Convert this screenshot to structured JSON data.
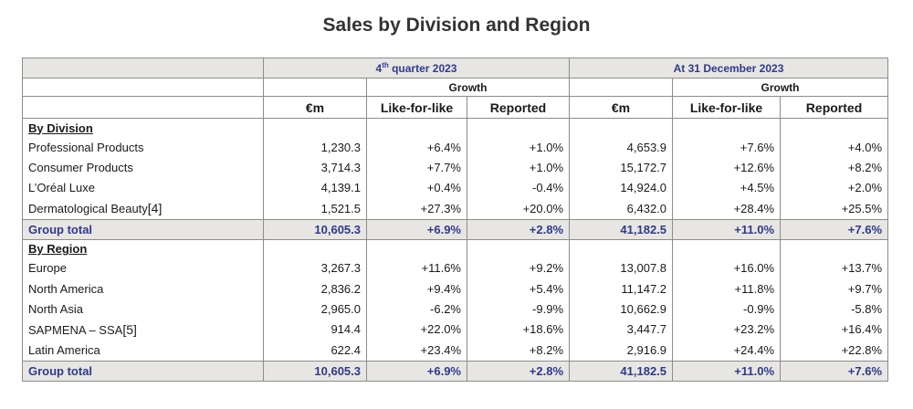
{
  "title": "Sales by Division and Region",
  "header": {
    "period1_prefix": "4",
    "period1_sup": "th",
    "period1_suffix": " quarter 2023",
    "period2": "At 31 December 2023",
    "growth": "Growth",
    "col_eur": "€m",
    "col_lfl": "Like-for-like",
    "col_reported": "Reported"
  },
  "division": {
    "heading": "By Division",
    "rows": [
      {
        "label": "Professional Products",
        "fn": "",
        "q_eur": "1,230.3",
        "q_lfl": "+6.4%",
        "q_rep": "+1.0%",
        "y_eur": "4,653.9",
        "y_lfl": "+7.6%",
        "y_rep": "+4.0%"
      },
      {
        "label": "Consumer Products",
        "fn": "",
        "q_eur": "3,714.3",
        "q_lfl": "+7.7%",
        "q_rep": "+1.0%",
        "y_eur": "15,172.7",
        "y_lfl": "+12.6%",
        "y_rep": "+8.2%"
      },
      {
        "label": "L’Oréal Luxe",
        "fn": "",
        "q_eur": "4,139.1",
        "q_lfl": "+0.4%",
        "q_rep": "-0.4%",
        "y_eur": "14,924.0",
        "y_lfl": "+4.5%",
        "y_rep": "+2.0%"
      },
      {
        "label": "Dermatological Beauty",
        "fn": "[4]",
        "q_eur": "1,521.5",
        "q_lfl": "+27.3%",
        "q_rep": "+20.0%",
        "y_eur": "6,432.0",
        "y_lfl": "+28.4%",
        "y_rep": "+25.5%"
      }
    ],
    "total": {
      "label": "Group total",
      "q_eur": "10,605.3",
      "q_lfl": "+6.9%",
      "q_rep": "+2.8%",
      "y_eur": "41,182.5",
      "y_lfl": "+11.0%",
      "y_rep": "+7.6%"
    }
  },
  "region": {
    "heading": "By Region",
    "rows": [
      {
        "label": "Europe",
        "fn": "",
        "q_eur": "3,267.3",
        "q_lfl": "+11.6%",
        "q_rep": "+9.2%",
        "y_eur": "13,007.8",
        "y_lfl": "+16.0%",
        "y_rep": "+13.7%"
      },
      {
        "label": "North America",
        "fn": "",
        "q_eur": "2,836.2",
        "q_lfl": "+9.4%",
        "q_rep": "+5.4%",
        "y_eur": "11,147.2",
        "y_lfl": "+11.8%",
        "y_rep": "+9.7%"
      },
      {
        "label": "North Asia",
        "fn": "",
        "q_eur": "2,965.0",
        "q_lfl": "-6.2%",
        "q_rep": "-9.9%",
        "y_eur": "10,662.9",
        "y_lfl": "-0.9%",
        "y_rep": "-5.8%"
      },
      {
        "label": "SAPMENA – SSA",
        "fn": "[5]",
        "q_eur": "914.4",
        "q_lfl": "+22.0%",
        "q_rep": "+18.6%",
        "y_eur": "3,447.7",
        "y_lfl": "+23.2%",
        "y_rep": "+16.4%"
      },
      {
        "label": "Latin America",
        "fn": "",
        "q_eur": "622.4",
        "q_lfl": "+23.4%",
        "q_rep": "+8.2%",
        "y_eur": "2,916.9",
        "y_lfl": "+24.4%",
        "y_rep": "+22.8%"
      }
    ],
    "total": {
      "label": "Group total",
      "q_eur": "10,605.3",
      "q_lfl": "+6.9%",
      "q_rep": "+2.8%",
      "y_eur": "41,182.5",
      "y_lfl": "+11.0%",
      "y_rep": "+7.6%"
    }
  }
}
